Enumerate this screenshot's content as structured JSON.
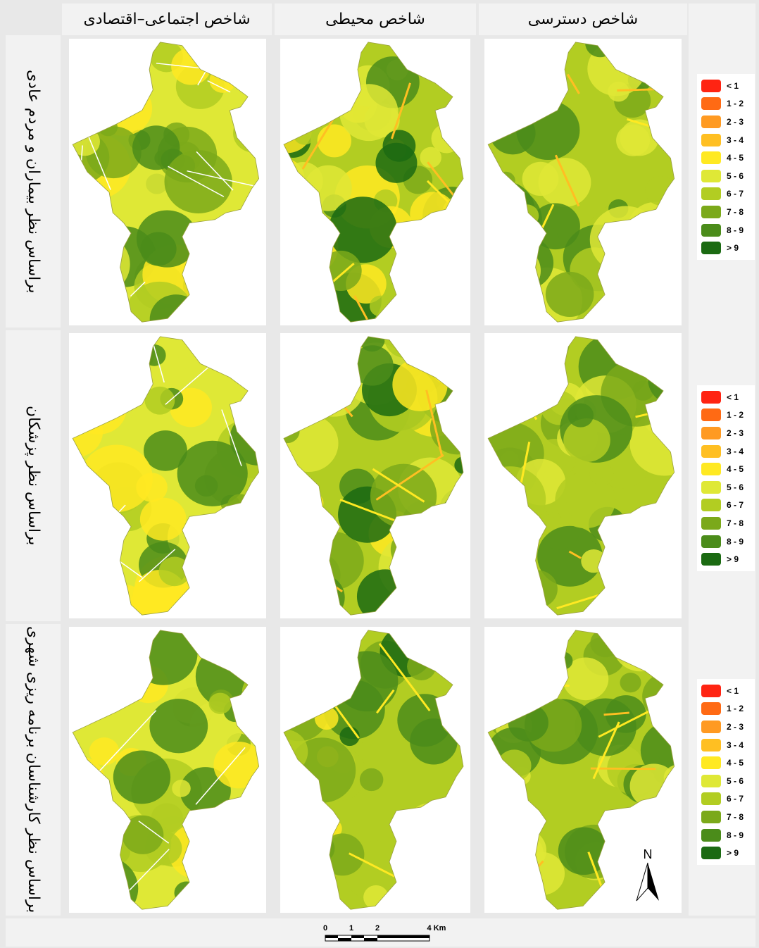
{
  "columns": [
    "شاخص اجتماعی–اقتصادی",
    "شاخص محیطی",
    "شاخص دسترسی"
  ],
  "rows": [
    "براساس نظر بیماران و مردم عادی",
    "براساس نظر پزشکان",
    "براساس  نظر کارشناسان برنامه ریزی شهری"
  ],
  "legend": {
    "classes": [
      {
        "label": "< 1",
        "color": "#ff2412"
      },
      {
        "label": "1 - 2",
        "color": "#ff6a14"
      },
      {
        "label": "2 - 3",
        "color": "#ff9a22"
      },
      {
        "label": "3 - 4",
        "color": "#ffbf22"
      },
      {
        "label": "4 - 5",
        "color": "#ffe922"
      },
      {
        "label": "5 - 6",
        "color": "#dfe836"
      },
      {
        "label": "6 - 7",
        "color": "#b2cd22"
      },
      {
        "label": "7 - 8",
        "color": "#7ba91a"
      },
      {
        "label": "8 - 9",
        "color": "#4b8c1a"
      },
      {
        "label": "> 9",
        "color": "#1b6a12"
      }
    ]
  },
  "scale_bar": {
    "labels": [
      "0",
      "1",
      "2",
      "4 Km"
    ]
  },
  "north_arrow": "N"
}
